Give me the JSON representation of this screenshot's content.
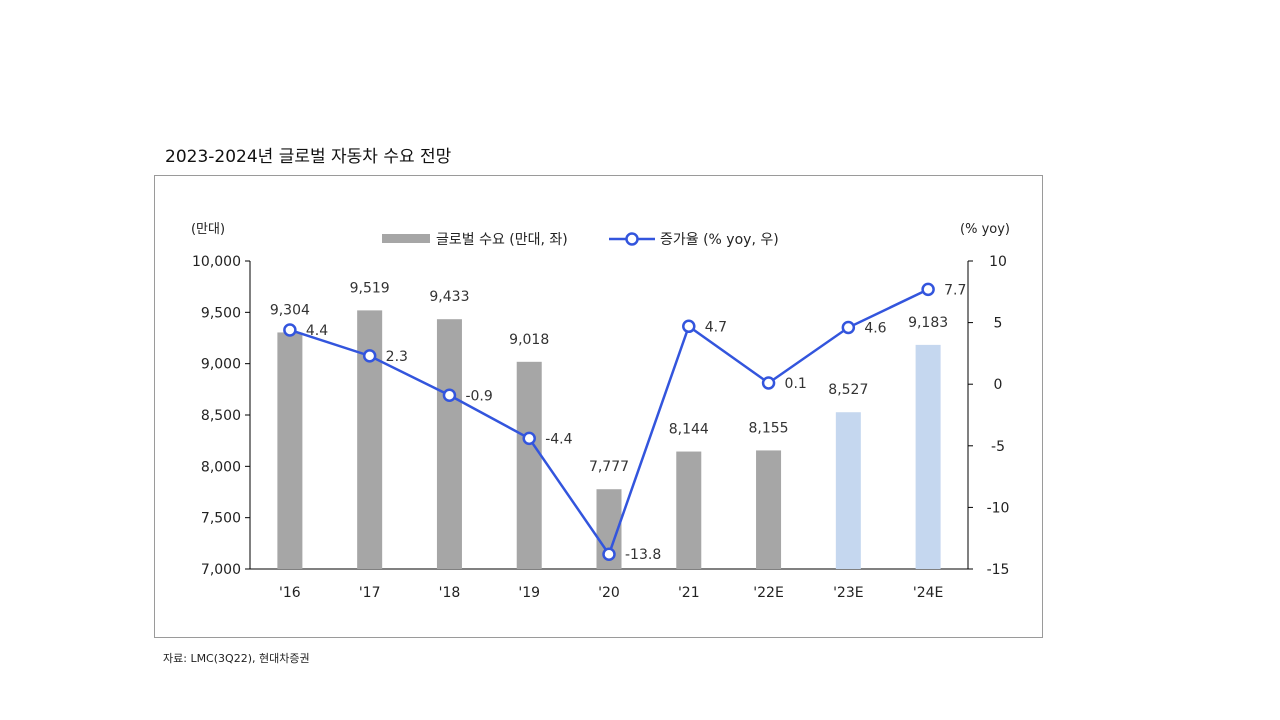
{
  "title": "2023-2024년 글로벌 자동차 수요 전망",
  "source": "자료: LMC(3Q22), 현대차증권",
  "chart_data": {
    "type": "bar",
    "categories": [
      "'16",
      "'17",
      "'18",
      "'19",
      "'20",
      "'21",
      "'22E",
      "'23E",
      "'24E"
    ],
    "series": [
      {
        "name": "글로벌 수요 (만대, 좌)",
        "type": "bar",
        "axis": "left",
        "values": [
          9304,
          9519,
          9433,
          9018,
          7777,
          8144,
          8155,
          8527,
          9183
        ],
        "labels": [
          "9,304",
          "9,519",
          "9,433",
          "9,018",
          "7,777",
          "8,144",
          "8,155",
          "8,527",
          "9,183"
        ],
        "colors": [
          "#a6a6a6",
          "#a6a6a6",
          "#a6a6a6",
          "#a6a6a6",
          "#a6a6a6",
          "#a6a6a6",
          "#a6a6a6",
          "#c5d7ef",
          "#c5d7ef"
        ]
      },
      {
        "name": "증가율 (% yoy, 우)",
        "type": "line",
        "axis": "right",
        "values": [
          4.4,
          2.3,
          -0.9,
          -4.4,
          -13.8,
          4.7,
          0.1,
          4.6,
          7.7
        ],
        "labels": [
          "4.4",
          "2.3",
          "-0.9",
          "-4.4",
          "-13.8",
          "4.7",
          "0.1",
          "4.6",
          "7.7"
        ],
        "color": "#3355dd"
      }
    ],
    "y_left": {
      "unit": "(만대)",
      "ylim": [
        7000,
        10000
      ],
      "ticks": [
        7000,
        7500,
        8000,
        8500,
        9000,
        9500,
        10000
      ],
      "tick_labels": [
        "7,000",
        "7,500",
        "8,000",
        "8,500",
        "9,000",
        "9,500",
        "10,000"
      ]
    },
    "y_right": {
      "unit": "(% yoy)",
      "ylim": [
        -15,
        10
      ],
      "ticks": [
        -15,
        -10,
        -5,
        0,
        5,
        10
      ],
      "tick_labels": [
        "-15",
        "-10",
        "-5",
        "0",
        "5",
        "10"
      ]
    },
    "legend_position": "top-center",
    "grid": false
  }
}
